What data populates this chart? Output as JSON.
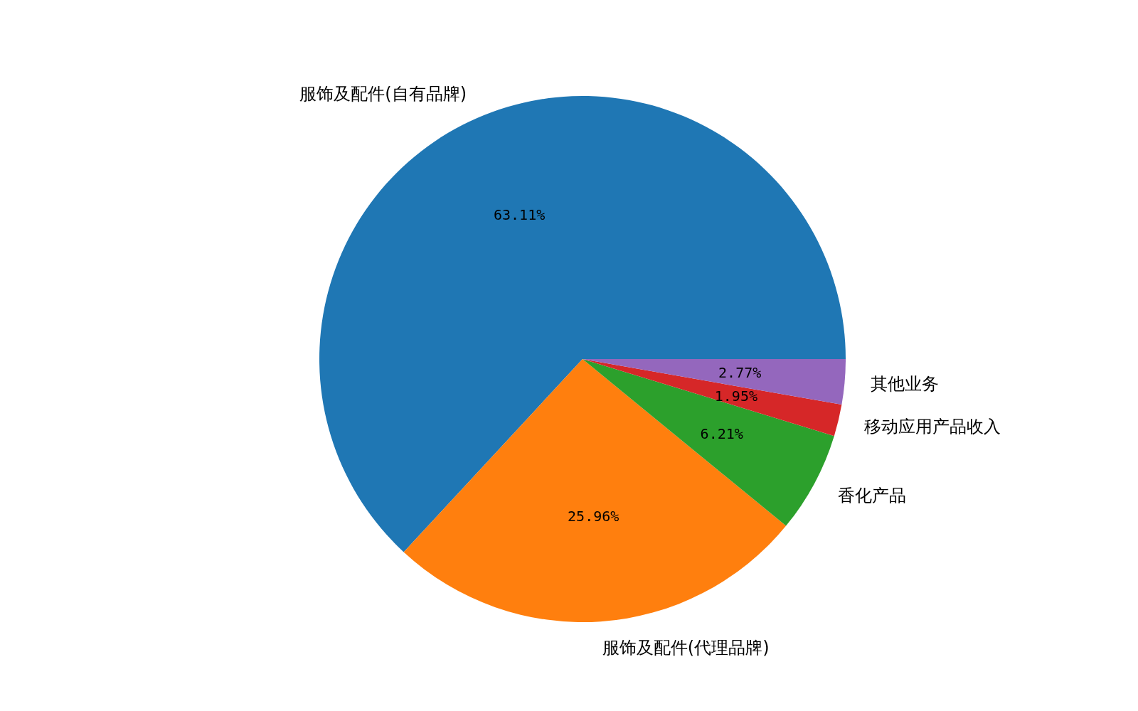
{
  "chart_data": {
    "type": "pie",
    "categories": [
      "服饰及配件(自有品牌)",
      "服饰及配件(代理品牌)",
      "香化产品",
      "移动应用产品收入",
      "其他业务"
    ],
    "values": [
      63.11,
      25.96,
      6.21,
      1.95,
      2.77
    ],
    "colors": [
      "#1f77b4",
      "#ff7f0e",
      "#2ca02c",
      "#d62728",
      "#9467bd"
    ],
    "value_labels": [
      "63.11%",
      "25.96%",
      "6.21%",
      "1.95%",
      "2.77%"
    ]
  }
}
